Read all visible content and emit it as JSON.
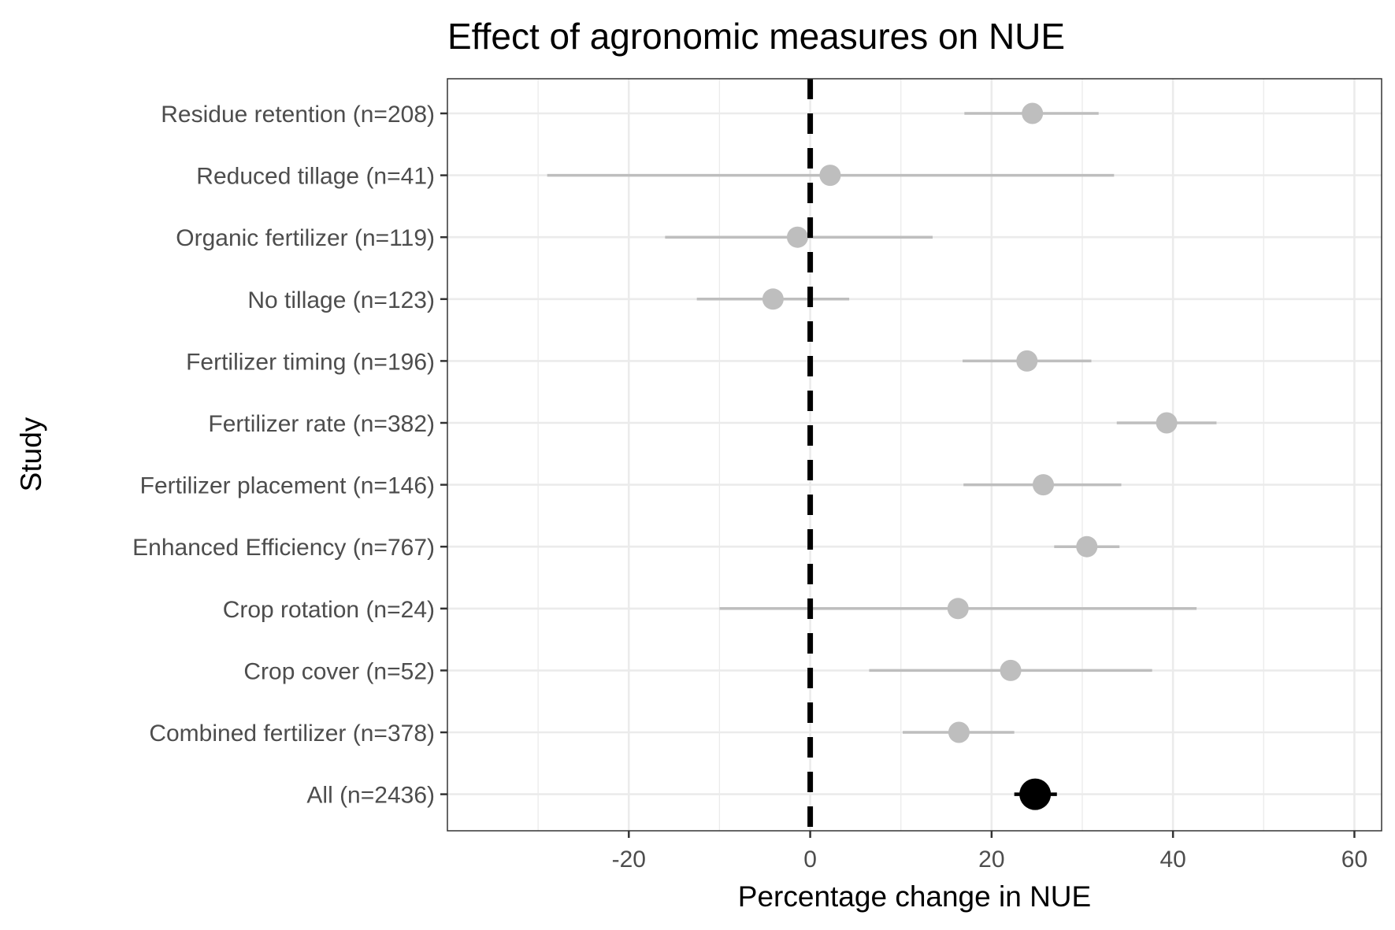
{
  "chart_data": {
    "type": "scatter",
    "subtype": "forest-plot",
    "title": "Effect of agronomic measures on NUE",
    "xlabel": "Percentage change in NUE",
    "ylabel": "Study",
    "xlim": [
      -40,
      63
    ],
    "x_ticks": [
      -20,
      0,
      20,
      40,
      60
    ],
    "x_tick_labels": [
      "-20",
      "0",
      "20",
      "40",
      "60"
    ],
    "reference_line": {
      "x": 0,
      "style": "dashed",
      "color": "#000000"
    },
    "grid": true,
    "colors": {
      "study": "#bebebe",
      "overall": "#000000",
      "grid": "#ebebeb",
      "panel_border": "#333333"
    },
    "studies": [
      {
        "label": "Residue retention (n=208)",
        "estimate": 24.5,
        "lower": 17.0,
        "upper": 31.8
      },
      {
        "label": "Reduced tillage (n=41)",
        "estimate": 2.2,
        "lower": -29.0,
        "upper": 33.5
      },
      {
        "label": "Organic fertilizer (n=119)",
        "estimate": -1.4,
        "lower": -16.0,
        "upper": 13.5
      },
      {
        "label": "No tillage (n=123)",
        "estimate": -4.1,
        "lower": -12.5,
        "upper": 4.3
      },
      {
        "label": "Fertilizer timing (n=196)",
        "estimate": 23.9,
        "lower": 16.8,
        "upper": 31.0
      },
      {
        "label": "Fertilizer rate (n=382)",
        "estimate": 39.3,
        "lower": 33.8,
        "upper": 44.8
      },
      {
        "label": "Fertilizer placement (n=146)",
        "estimate": 25.7,
        "lower": 16.9,
        "upper": 34.3
      },
      {
        "label": "Enhanced Efficiency (n=767)",
        "estimate": 30.5,
        "lower": 26.9,
        "upper": 34.1
      },
      {
        "label": "Crop rotation (n=24)",
        "estimate": 16.3,
        "lower": -10.0,
        "upper": 42.6
      },
      {
        "label": "Crop cover (n=52)",
        "estimate": 22.1,
        "lower": 6.5,
        "upper": 37.7
      },
      {
        "label": "Combined fertilizer (n=378)",
        "estimate": 16.4,
        "lower": 10.2,
        "upper": 22.5
      },
      {
        "label": "All (n=2436)",
        "estimate": 24.8,
        "lower": 22.5,
        "upper": 27.2,
        "overall": true
      }
    ]
  }
}
